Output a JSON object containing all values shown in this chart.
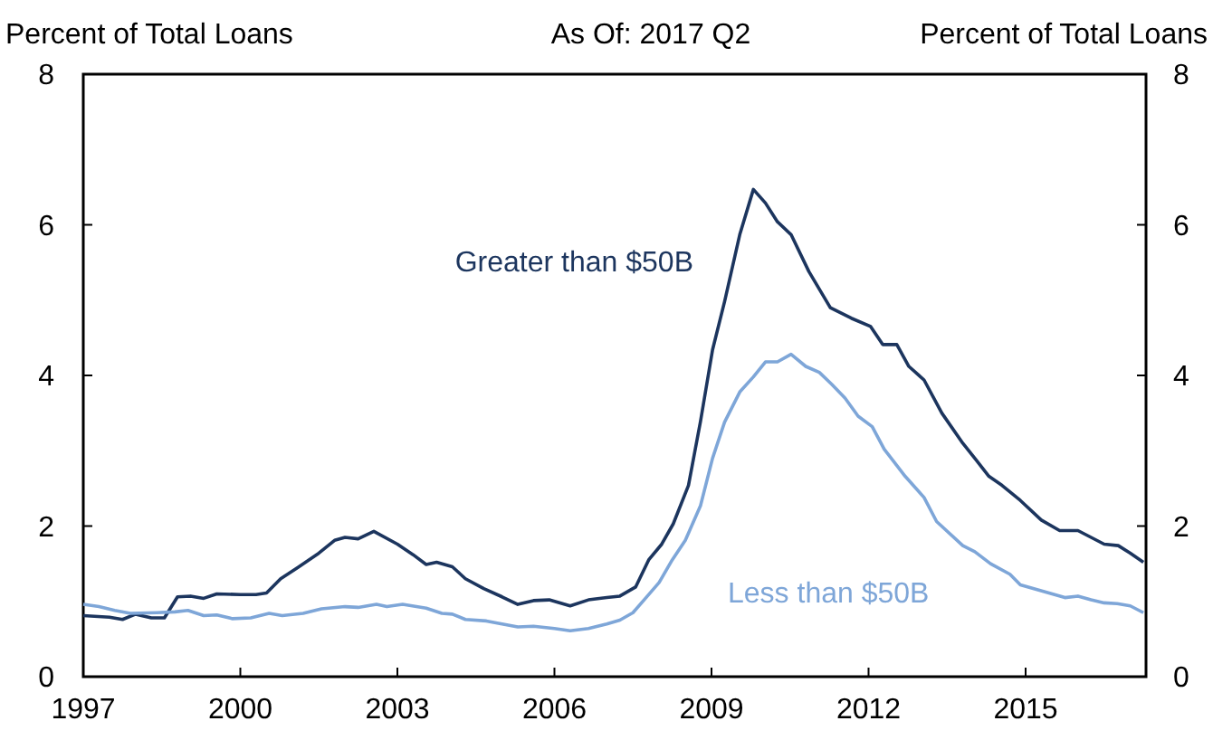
{
  "chart_data": {
    "type": "line",
    "title": "As Of: 2017 Q2",
    "ylabel": "Percent of Total Loans",
    "y2label": "Percent of Total Loans",
    "xlim": [
      1997,
      2017.3
    ],
    "xticks": [
      1997,
      2000,
      2003,
      2006,
      2009,
      2012,
      2015
    ],
    "ylim": [
      0,
      8
    ],
    "yticks": [
      0,
      2,
      4,
      6,
      8
    ],
    "y2lim": [
      0,
      8
    ],
    "y2ticks": [
      0,
      2,
      4,
      6,
      8
    ],
    "grid": false,
    "line_style": "solid",
    "marker": "none",
    "series": [
      {
        "name": "Greater than $50B",
        "color": "#1c355e",
        "x": [
          1997,
          1997.5,
          1997.75,
          1998,
          1998.3,
          1998.55,
          1998.8,
          1999.05,
          1999.3,
          1999.55,
          2000,
          2000.3,
          2000.5,
          2000.77,
          2001.1,
          2001.5,
          2001.8,
          2002,
          2002.25,
          2002.55,
          2003,
          2003.3,
          2003.55,
          2003.75,
          2004.05,
          2004.3,
          2004.65,
          2005,
          2005.3,
          2005.6,
          2005.9,
          2006.3,
          2006.65,
          2007,
          2007.25,
          2007.55,
          2007.8,
          2008.05,
          2008.27,
          2008.56,
          2008.79,
          2009.02,
          2009.25,
          2009.54,
          2009.8,
          2010.03,
          2010.26,
          2010.52,
          2010.86,
          2011.27,
          2011.67,
          2012.04,
          2012.27,
          2012.54,
          2012.77,
          2013.06,
          2013.4,
          2013.8,
          2014.03,
          2014.3,
          2014.55,
          2014.9,
          2015.3,
          2015.65,
          2016,
          2016.5,
          2016.77,
          2017,
          2017.25
        ],
        "values": [
          0.81,
          0.79,
          0.76,
          0.83,
          0.78,
          0.78,
          1.06,
          1.07,
          1.04,
          1.1,
          1.09,
          1.09,
          1.11,
          1.3,
          1.45,
          1.64,
          1.81,
          1.85,
          1.83,
          1.93,
          1.76,
          1.62,
          1.49,
          1.52,
          1.46,
          1.3,
          1.17,
          1.06,
          0.96,
          1.01,
          1.02,
          0.94,
          1.02,
          1.05,
          1.07,
          1.19,
          1.55,
          1.76,
          2.03,
          2.54,
          3.39,
          4.34,
          4.98,
          5.87,
          6.47,
          6.29,
          6.04,
          5.87,
          5.38,
          4.9,
          4.76,
          4.65,
          4.41,
          4.41,
          4.12,
          3.94,
          3.5,
          3.1,
          2.9,
          2.66,
          2.54,
          2.34,
          2.08,
          1.94,
          1.94,
          1.76,
          1.74,
          1.64,
          1.52
        ]
      },
      {
        "name": "Less than $50B",
        "color": "#7ea6d8",
        "x": [
          1997,
          1997.3,
          1997.6,
          1997.9,
          1998.4,
          1998.75,
          1999,
          1999.3,
          1999.55,
          1999.85,
          2000.2,
          2000.55,
          2000.8,
          2001.2,
          2001.55,
          2002,
          2002.25,
          2002.6,
          2002.8,
          2003.1,
          2003.55,
          2003.85,
          2004.05,
          2004.3,
          2004.7,
          2005,
          2005.3,
          2005.6,
          2006,
          2006.3,
          2006.65,
          2007,
          2007.25,
          2007.5,
          2007.75,
          2008,
          2008.25,
          2008.5,
          2008.79,
          2009.02,
          2009.25,
          2009.54,
          2009.8,
          2010.03,
          2010.26,
          2010.52,
          2010.8,
          2011.06,
          2011.3,
          2011.55,
          2011.8,
          2012.07,
          2012.3,
          2012.7,
          2013.06,
          2013.3,
          2013.8,
          2014.03,
          2014.33,
          2014.7,
          2014.9,
          2015.25,
          2015.75,
          2016,
          2016.25,
          2016.5,
          2016.75,
          2017,
          2017.25
        ],
        "values": [
          0.96,
          0.93,
          0.88,
          0.84,
          0.85,
          0.86,
          0.88,
          0.81,
          0.82,
          0.77,
          0.78,
          0.84,
          0.81,
          0.84,
          0.9,
          0.93,
          0.92,
          0.96,
          0.93,
          0.96,
          0.91,
          0.84,
          0.83,
          0.76,
          0.74,
          0.7,
          0.66,
          0.67,
          0.64,
          0.61,
          0.64,
          0.7,
          0.75,
          0.85,
          1.05,
          1.25,
          1.55,
          1.81,
          2.27,
          2.9,
          3.38,
          3.78,
          3.98,
          4.18,
          4.18,
          4.28,
          4.12,
          4.04,
          3.88,
          3.7,
          3.46,
          3.32,
          3.02,
          2.66,
          2.38,
          2.06,
          1.74,
          1.66,
          1.5,
          1.36,
          1.22,
          1.15,
          1.05,
          1.07,
          1.02,
          0.98,
          0.97,
          0.94,
          0.85
        ]
      }
    ]
  }
}
